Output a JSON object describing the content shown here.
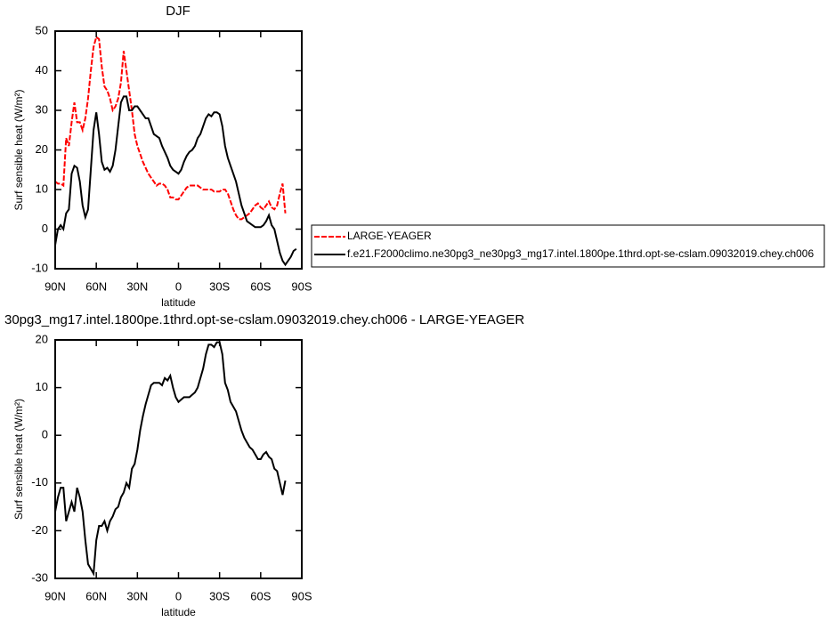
{
  "chart_data": [
    {
      "type": "line",
      "title": "DJF",
      "xlabel": "latitude",
      "ylabel": "Surf sensible heat (W/m²)",
      "xlim": [
        90,
        -90
      ],
      "ylim": [
        -10,
        50
      ],
      "xticks": [
        {
          "value": 90,
          "label": "90N"
        },
        {
          "value": 60,
          "label": "60N"
        },
        {
          "value": 30,
          "label": "30N"
        },
        0,
        {
          "value": -30,
          "label": "30S"
        },
        {
          "value": -60,
          "label": "60S"
        },
        {
          "value": -90,
          "label": "90S"
        }
      ],
      "yticks": [
        -10,
        0,
        10,
        20,
        30,
        40,
        50
      ],
      "legend": "right",
      "x": [
        90,
        88,
        86,
        84,
        82,
        80,
        78,
        76,
        74,
        72,
        70,
        68,
        66,
        64,
        62,
        60,
        58,
        56,
        54,
        52,
        50,
        48,
        46,
        44,
        42,
        40,
        38,
        36,
        34,
        32,
        30,
        28,
        26,
        24,
        22,
        20,
        18,
        16,
        14,
        12,
        10,
        8,
        6,
        4,
        2,
        0,
        -2,
        -4,
        -6,
        -8,
        -10,
        -12,
        -14,
        -16,
        -18,
        -20,
        -22,
        -24,
        -26,
        -28,
        -30,
        -32,
        -34,
        -36,
        -38,
        -40,
        -42,
        -44,
        -46,
        -48,
        -50,
        -52,
        -54,
        -56,
        -58,
        -60,
        -62,
        -64,
        -66,
        -68,
        -70,
        -72,
        -74,
        -76,
        -78,
        -80,
        -82,
        -84,
        -86
      ],
      "series": [
        {
          "name": "LARGE-YEAGER",
          "color": "#ff0000",
          "dash": true,
          "values": [
            12,
            11.5,
            11.5,
            11,
            23,
            21,
            27,
            32,
            27,
            27,
            25,
            28,
            33,
            40,
            46,
            48.5,
            48,
            41,
            36,
            35,
            33,
            30,
            31,
            33,
            37,
            45,
            40,
            35,
            30,
            24,
            21,
            19,
            17,
            15.5,
            14,
            13,
            12,
            11,
            11.5,
            11.5,
            11,
            10,
            8,
            8,
            7.5,
            7.5,
            8.5,
            9.5,
            10.5,
            11,
            11,
            11,
            11,
            10.5,
            10,
            10,
            10,
            10,
            9.5,
            9.5,
            9.5,
            10,
            10,
            9,
            7,
            5,
            3.5,
            2.5,
            2.5,
            3,
            3.5,
            4,
            5,
            6,
            6.5,
            5.5,
            5,
            6,
            7,
            5.5,
            5,
            6,
            9,
            11.5,
            4,
            null,
            null,
            null,
            null
          ]
        },
        {
          "name": "f.e21.F2000climo.ne30pg3_ne30pg3_mg17.intel.1800pe.1thrd.opt-se-cslam.09032019.chey.ch006",
          "color": "#000000",
          "dash": false,
          "values": [
            -4,
            0,
            1,
            0,
            4,
            5,
            14,
            16,
            15.5,
            12,
            6,
            3,
            5,
            15,
            25,
            29.5,
            24,
            17,
            15,
            15.5,
            14.5,
            16,
            20,
            26,
            32,
            33.5,
            33.5,
            30,
            30,
            31,
            31,
            30,
            29,
            28,
            28,
            26,
            24,
            23.5,
            23,
            21,
            19.5,
            18,
            16,
            15,
            14.5,
            14,
            15,
            17,
            18.5,
            19.5,
            20,
            21,
            23,
            24,
            26,
            28,
            29,
            28.5,
            29.5,
            29.5,
            29,
            26,
            21,
            18,
            16,
            14,
            12,
            9,
            6,
            4,
            2,
            1.5,
            1,
            0.5,
            0.5,
            0.5,
            1,
            2,
            3.5,
            1,
            0,
            -3,
            -6,
            -8,
            -9,
            -8,
            -7,
            -5.5,
            -5
          ]
        }
      ]
    },
    {
      "type": "line",
      "title": "30pg3_mg17.intel.1800pe.1thrd.opt-se-cslam.09032019.chey.ch006 - LARGE-YEAGER",
      "xlabel": "latitude",
      "ylabel": "Surf sensible heat (W/m²)",
      "xlim": [
        90,
        -90
      ],
      "ylim": [
        -30,
        20
      ],
      "xticks": [
        {
          "value": 90,
          "label": "90N"
        },
        {
          "value": 60,
          "label": "60N"
        },
        {
          "value": 30,
          "label": "30N"
        },
        0,
        {
          "value": -30,
          "label": "30S"
        },
        {
          "value": -60,
          "label": "60S"
        },
        {
          "value": -90,
          "label": "90S"
        }
      ],
      "yticks": [
        -30,
        -20,
        -10,
        0,
        10,
        20
      ],
      "x": [
        90,
        88,
        86,
        84,
        82,
        80,
        78,
        76,
        74,
        72,
        70,
        68,
        66,
        64,
        62,
        60,
        58,
        56,
        54,
        52,
        50,
        48,
        46,
        44,
        42,
        40,
        38,
        36,
        34,
        32,
        30,
        28,
        26,
        24,
        22,
        20,
        18,
        16,
        14,
        12,
        10,
        8,
        6,
        4,
        2,
        0,
        -2,
        -4,
        -6,
        -8,
        -10,
        -12,
        -14,
        -16,
        -18,
        -20,
        -22,
        -24,
        -26,
        -28,
        -30,
        -32,
        -34,
        -36,
        -38,
        -40,
        -42,
        -44,
        -46,
        -48,
        -50,
        -52,
        -54,
        -56,
        -58,
        -60,
        -62,
        -64,
        -66,
        -68,
        -70,
        -72,
        -74,
        -76,
        -78
      ],
      "color": "#000000",
      "values": [
        -16,
        -13,
        -11,
        -11,
        -18,
        -16,
        -14,
        -16,
        -11,
        -13,
        -16,
        -22,
        -27,
        -28,
        -29,
        -22,
        -19,
        -19,
        -18,
        -20,
        -18,
        -17,
        -15.5,
        -15,
        -13,
        -12,
        -10,
        -11,
        -7,
        -6,
        -3,
        1,
        4,
        6.5,
        8.5,
        10.5,
        11,
        11,
        11,
        10.5,
        12,
        11.5,
        12.5,
        10,
        8,
        7,
        7.5,
        8,
        8,
        8,
        8.5,
        9,
        10,
        12,
        14,
        17,
        19,
        19,
        18.5,
        19.5,
        19.5,
        17,
        11,
        9.5,
        7,
        6,
        5,
        3,
        1,
        -0.5,
        -1.5,
        -2.5,
        -3,
        -4,
        -5,
        -5,
        -4,
        -3.5,
        -4.5,
        -5,
        -7,
        -7.5,
        -10,
        -12.5,
        -9.5
      ]
    }
  ]
}
